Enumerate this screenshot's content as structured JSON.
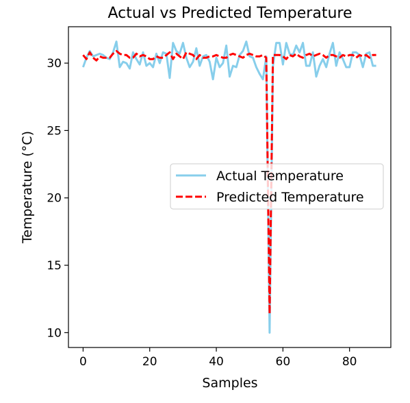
{
  "chart_data": {
    "type": "line",
    "title": "Actual vs Predicted Temperature",
    "xlabel": "Samples",
    "ylabel": "Temperature (°C)",
    "xlim": [
      -4.4,
      92.4
    ],
    "ylim": [
      8.9,
      32.7
    ],
    "xticks": [
      0,
      20,
      40,
      60,
      80
    ],
    "yticks": [
      10,
      15,
      20,
      25,
      30
    ],
    "grid": false,
    "legend_position": "center-right",
    "series": [
      {
        "name": "Actual Temperature",
        "color": "#87ceeb",
        "dash": "solid",
        "x": [
          0,
          1,
          2,
          3,
          4,
          5,
          6,
          7,
          8,
          9,
          10,
          11,
          12,
          13,
          14,
          15,
          16,
          17,
          18,
          19,
          20,
          21,
          22,
          23,
          24,
          25,
          26,
          27,
          28,
          29,
          30,
          31,
          32,
          33,
          34,
          35,
          36,
          37,
          38,
          39,
          40,
          41,
          42,
          43,
          44,
          45,
          46,
          47,
          48,
          49,
          50,
          51,
          52,
          53,
          54,
          55,
          56,
          57,
          58,
          59,
          60,
          61,
          62,
          63,
          64,
          65,
          66,
          67,
          68,
          69,
          70,
          71,
          72,
          73,
          74,
          75,
          76,
          77,
          78,
          79,
          80,
          81,
          82,
          83,
          84,
          85,
          86,
          87,
          88
        ],
        "values": [
          29.7,
          30.4,
          30.9,
          30.5,
          30.6,
          30.7,
          30.6,
          30.4,
          30.3,
          30.8,
          31.6,
          29.7,
          30.1,
          30.0,
          29.6,
          30.8,
          30.3,
          29.9,
          30.8,
          29.8,
          30.0,
          29.7,
          30.7,
          30.0,
          30.8,
          30.7,
          28.9,
          31.5,
          30.9,
          30.7,
          31.5,
          30.4,
          29.7,
          30.1,
          31.1,
          29.8,
          30.5,
          30.6,
          30.1,
          28.8,
          30.4,
          29.7,
          30.0,
          31.3,
          29.0,
          29.8,
          29.7,
          30.6,
          30.9,
          31.6,
          30.5,
          30.4,
          29.7,
          29.2,
          28.8,
          30.5,
          10.0,
          29.8,
          31.5,
          31.5,
          29.9,
          31.5,
          30.7,
          30.6,
          31.3,
          30.8,
          31.5,
          29.8,
          29.8,
          30.8,
          29.0,
          29.8,
          30.3,
          29.7,
          30.7,
          31.5,
          29.8,
          30.8,
          30.3,
          29.7,
          29.7,
          30.8,
          30.8,
          30.6,
          29.7,
          30.7,
          30.8,
          29.8,
          29.8
        ]
      },
      {
        "name": "Predicted Temperature",
        "color": "#ff0000",
        "dash": "dashed",
        "x": [
          0,
          1,
          2,
          3,
          4,
          5,
          6,
          7,
          8,
          9,
          10,
          11,
          12,
          13,
          14,
          15,
          16,
          17,
          18,
          19,
          20,
          21,
          22,
          23,
          24,
          25,
          26,
          27,
          28,
          29,
          30,
          31,
          32,
          33,
          34,
          35,
          36,
          37,
          38,
          39,
          40,
          41,
          42,
          43,
          44,
          45,
          46,
          47,
          48,
          49,
          50,
          51,
          52,
          53,
          54,
          55,
          56,
          57,
          58,
          59,
          60,
          61,
          62,
          63,
          64,
          65,
          66,
          67,
          68,
          69,
          70,
          71,
          72,
          73,
          74,
          75,
          76,
          77,
          78,
          79,
          80,
          81,
          82,
          83,
          84,
          85,
          86,
          87,
          88
        ],
        "values": [
          30.6,
          30.3,
          30.8,
          30.4,
          30.2,
          30.5,
          30.4,
          30.4,
          30.4,
          30.7,
          30.9,
          30.7,
          30.6,
          30.6,
          30.4,
          30.4,
          30.7,
          30.5,
          30.6,
          30.5,
          30.3,
          30.3,
          30.5,
          30.4,
          30.4,
          30.6,
          30.8,
          30.3,
          30.7,
          30.5,
          30.3,
          30.8,
          30.7,
          30.6,
          30.3,
          30.6,
          30.4,
          30.4,
          30.5,
          30.5,
          30.6,
          30.5,
          30.4,
          30.4,
          30.6,
          30.7,
          30.6,
          30.5,
          30.4,
          30.6,
          30.7,
          30.6,
          30.5,
          30.5,
          30.6,
          30.4,
          11.4,
          30.6,
          30.6,
          30.6,
          30.5,
          30.3,
          30.6,
          30.5,
          30.7,
          30.5,
          30.4,
          30.6,
          30.7,
          30.5,
          30.6,
          30.7,
          30.6,
          30.4,
          30.6,
          30.6,
          30.5,
          30.4,
          30.6,
          30.5,
          30.6,
          30.6,
          30.4,
          30.6,
          30.5,
          30.6,
          30.4,
          30.6,
          30.6
        ]
      }
    ]
  }
}
